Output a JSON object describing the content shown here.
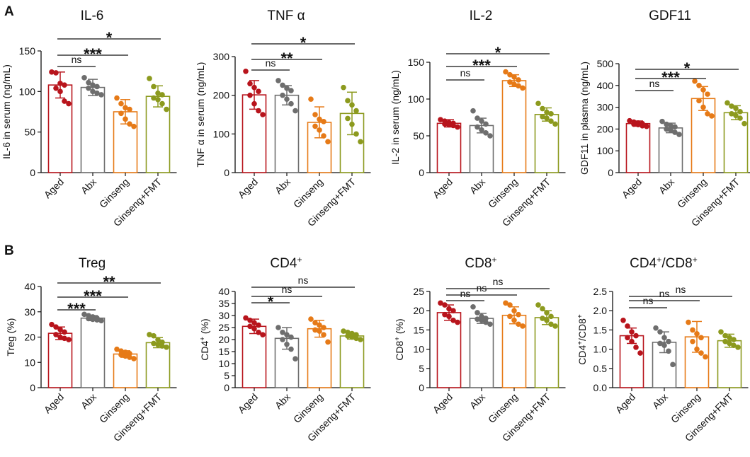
{
  "panels": [
    {
      "label": "A"
    },
    {
      "label": "B"
    }
  ],
  "colors": {
    "aged": "#b8141c",
    "abx": "#6e6e6e",
    "ginseng": "#e67a17",
    "fmt": "#8c9a1e",
    "axis": "#111111"
  },
  "chart_data": [
    {
      "type": "bar",
      "panel": "A",
      "title": "IL-6",
      "ylabel": "IL-6 in serum (ng/mL)",
      "ylim": [
        0,
        150
      ],
      "yticks": [
        0,
        50,
        100,
        150
      ],
      "categories": [
        "Aged",
        "Abx",
        "Ginseng",
        "Ginseng+FMT"
      ],
      "values": [
        108,
        105,
        75,
        94
      ],
      "errors": [
        16,
        10,
        15,
        13
      ],
      "points": [
        [
          124,
          123,
          110,
          108,
          104,
          100,
          88,
          85
        ],
        [
          117,
          111,
          108,
          106,
          104,
          100,
          98,
          96
        ],
        [
          92,
          85,
          80,
          78,
          73,
          66,
          60,
          57
        ],
        [
          116,
          106,
          98,
          96,
          92,
          90,
          85,
          78
        ]
      ],
      "comparisons": [
        {
          "from": "Aged",
          "to": "Abx",
          "label": "ns"
        },
        {
          "from": "Aged",
          "to": "Ginseng",
          "label": "***"
        },
        {
          "from": "Aged",
          "to": "Ginseng+FMT",
          "label": "*"
        }
      ]
    },
    {
      "type": "bar",
      "panel": "A",
      "title": "TNF α",
      "ylabel": "TNF α in serum (ng/mL)",
      "ylim": [
        0,
        300
      ],
      "yticks": [
        0,
        100,
        200,
        300
      ],
      "categories": [
        "Aged",
        "Abx",
        "Ginseng",
        "Ginseng+FMT"
      ],
      "values": [
        201,
        200,
        130,
        153
      ],
      "errors": [
        37,
        25,
        40,
        55
      ],
      "points": [
        [
          262,
          230,
          220,
          210,
          200,
          178,
          160,
          150
        ],
        [
          238,
          226,
          218,
          212,
          200,
          190,
          178,
          160
        ],
        [
          190,
          150,
          138,
          132,
          120,
          110,
          95,
          80
        ],
        [
          220,
          186,
          175,
          160,
          140,
          125,
          100,
          80
        ]
      ],
      "comparisons": [
        {
          "from": "Aged",
          "to": "Abx",
          "label": "ns"
        },
        {
          "from": "Aged",
          "to": "Ginseng",
          "label": "**"
        },
        {
          "from": "Aged",
          "to": "Ginseng+FMT",
          "label": "*"
        }
      ]
    },
    {
      "type": "bar",
      "panel": "A",
      "title": "IL-2",
      "ylabel": "IL-2 in serum (ng/mL)",
      "ylim": [
        0,
        150
      ],
      "yticks": [
        0,
        50,
        100,
        150
      ],
      "categories": [
        "Aged",
        "Abx",
        "Ginseng",
        "Ginseng+FMT"
      ],
      "values": [
        67,
        64,
        125,
        79
      ],
      "errors": [
        5,
        10,
        8,
        9
      ],
      "points": [
        [
          72,
          70,
          68,
          67,
          66,
          65,
          64,
          62
        ],
        [
          84,
          74,
          70,
          66,
          62,
          58,
          54,
          50
        ],
        [
          137,
          133,
          130,
          126,
          123,
          120,
          118,
          115
        ],
        [
          94,
          87,
          82,
          80,
          76,
          74,
          70,
          66
        ]
      ],
      "comparisons": [
        {
          "from": "Aged",
          "to": "Abx",
          "label": "ns"
        },
        {
          "from": "Aged",
          "to": "Ginseng",
          "label": "***"
        },
        {
          "from": "Aged",
          "to": "Ginseng+FMT",
          "label": "*"
        }
      ]
    },
    {
      "type": "bar",
      "panel": "A",
      "title": "GDF11",
      "ylabel": "GDF11 in plasma (ng/mL)",
      "ylim": [
        0,
        500
      ],
      "yticks": [
        0,
        100,
        200,
        300,
        400,
        500
      ],
      "categories": [
        "Aged",
        "Abx",
        "Ginseng",
        "Ginseng+FMT"
      ],
      "values": [
        225,
        205,
        340,
        275
      ],
      "errors": [
        12,
        22,
        55,
        32
      ],
      "points": [
        [
          238,
          232,
          228,
          225,
          222,
          220,
          215,
          212
        ],
        [
          235,
          222,
          215,
          210,
          200,
          195,
          185,
          175
        ],
        [
          420,
          400,
          380,
          360,
          330,
          300,
          270,
          260
        ],
        [
          320,
          305,
          295,
          280,
          270,
          262,
          250,
          225
        ]
      ],
      "comparisons": [
        {
          "from": "Aged",
          "to": "Abx",
          "label": "ns"
        },
        {
          "from": "Aged",
          "to": "Ginseng",
          "label": "***"
        },
        {
          "from": "Aged",
          "to": "Ginseng+FMT",
          "label": "*"
        }
      ]
    },
    {
      "type": "bar",
      "panel": "B",
      "title": "Treg",
      "ylabel": "Treg (%)",
      "ylim": [
        0,
        40
      ],
      "yticks": [
        0,
        10,
        20,
        30,
        40
      ],
      "categories": [
        "Aged",
        "Abx",
        "Ginseng",
        "Ginseng+FMT"
      ],
      "values": [
        21.5,
        27.5,
        13.3,
        17.8
      ],
      "errors": [
        2.5,
        1,
        1.3,
        2
      ],
      "points": [
        [
          25,
          24,
          23,
          22,
          21,
          20,
          19.5,
          19
        ],
        [
          29,
          28.5,
          28,
          27.5,
          27.3,
          27,
          26.8,
          26.5
        ],
        [
          15.2,
          14.5,
          14,
          13.5,
          13,
          12.5,
          12,
          11.5
        ],
        [
          21,
          20.5,
          19,
          18,
          17.5,
          17,
          16.5,
          16
        ]
      ],
      "comparisons": [
        {
          "from": "Aged",
          "to": "Abx",
          "label": "***"
        },
        {
          "from": "Aged",
          "to": "Ginseng",
          "label": "***"
        },
        {
          "from": "Aged",
          "to": "Ginseng+FMT",
          "label": "**"
        }
      ]
    },
    {
      "type": "bar",
      "panel": "B",
      "title": "CD4",
      "title_sup": "+",
      "ylabel": "CD4",
      "ylabel_sup": "+",
      "ylabel_suffix": " (%)",
      "ylim": [
        0,
        40
      ],
      "yticks": [
        0,
        5,
        10,
        15,
        20,
        25,
        30,
        35,
        40
      ],
      "categories": [
        "Aged",
        "Abx",
        "Ginseng",
        "Ginseng+FMT"
      ],
      "values": [
        25.5,
        20.5,
        24.5,
        21.5
      ],
      "errors": [
        3,
        4.5,
        3.5,
        1.3
      ],
      "points": [
        [
          29,
          28,
          27,
          26,
          25.5,
          24.5,
          23,
          22
        ],
        [
          25,
          23,
          22,
          21,
          20,
          18,
          16,
          12
        ],
        [
          28.5,
          27,
          26,
          25,
          24,
          23.5,
          22,
          19
        ],
        [
          23.5,
          23,
          22.5,
          22,
          21.5,
          21,
          20.5,
          20
        ]
      ],
      "comparisons": [
        {
          "from": "Aged",
          "to": "Abx",
          "label": "*"
        },
        {
          "from": "Aged",
          "to": "Ginseng",
          "label": "ns"
        },
        {
          "from": "Aged",
          "to": "Ginseng+FMT",
          "label": "ns"
        }
      ]
    },
    {
      "type": "bar",
      "panel": "B",
      "title": "CD8",
      "title_sup": "+",
      "ylabel": "CD8",
      "ylabel_sup": "+",
      "ylabel_suffix": " (%)",
      "ylim": [
        0,
        25
      ],
      "yticks": [
        0,
        5,
        10,
        15,
        20,
        25
      ],
      "categories": [
        "Aged",
        "Abx",
        "Ginseng",
        "Ginseng+FMT"
      ],
      "values": [
        19.5,
        18,
        18.8,
        18.2
      ],
      "errors": [
        2,
        1.3,
        2.2,
        1.8
      ],
      "points": [
        [
          22,
          21.5,
          20.5,
          20,
          19,
          18.5,
          17.5,
          17
        ],
        [
          21,
          19.5,
          18.5,
          18,
          17.8,
          17.5,
          17,
          16.5
        ],
        [
          22,
          21.5,
          20,
          19,
          18.5,
          17.5,
          16.5,
          16
        ],
        [
          21.5,
          20.5,
          19.5,
          18.5,
          18,
          17.5,
          16.5,
          16
        ]
      ],
      "comparisons": [
        {
          "from": "Aged",
          "to": "Abx",
          "label": "ns"
        },
        {
          "from": "Aged",
          "to": "Ginseng",
          "label": "ns"
        },
        {
          "from": "Aged",
          "to": "Ginseng+FMT",
          "label": "ns"
        }
      ]
    },
    {
      "type": "bar",
      "panel": "B",
      "title": "CD4",
      "title_parts": [
        "CD4",
        "+",
        "/CD8",
        "+"
      ],
      "ylabel": "CD4",
      "ylabel_parts": [
        "CD4",
        "+",
        "/CD8",
        "+"
      ],
      "ylim": [
        0,
        2.5
      ],
      "yticks": [
        0.0,
        0.5,
        1.0,
        1.5,
        2.0,
        2.5
      ],
      "tick_decimals": 1,
      "categories": [
        "Aged",
        "Abx",
        "Ginseng",
        "Ginseng+FMT"
      ],
      "values": [
        1.35,
        1.18,
        1.32,
        1.22
      ],
      "errors": [
        0.2,
        0.27,
        0.4,
        0.17
      ],
      "points": [
        [
          1.75,
          1.6,
          1.45,
          1.35,
          1.3,
          1.2,
          1.05,
          0.9
        ],
        [
          1.55,
          1.45,
          1.3,
          1.2,
          1.15,
          1.1,
          0.95,
          0.6
        ],
        [
          1.7,
          1.5,
          1.4,
          1.3,
          1.2,
          1.0,
          0.9,
          0.8
        ],
        [
          1.45,
          1.35,
          1.3,
          1.25,
          1.2,
          1.15,
          1.1,
          1.05
        ]
      ],
      "comparisons": [
        {
          "from": "Aged",
          "to": "Abx",
          "label": "ns"
        },
        {
          "from": "Aged",
          "to": "Ginseng",
          "label": "ns"
        },
        {
          "from": "Aged",
          "to": "Ginseng+FMT",
          "label": "ns"
        }
      ]
    }
  ]
}
